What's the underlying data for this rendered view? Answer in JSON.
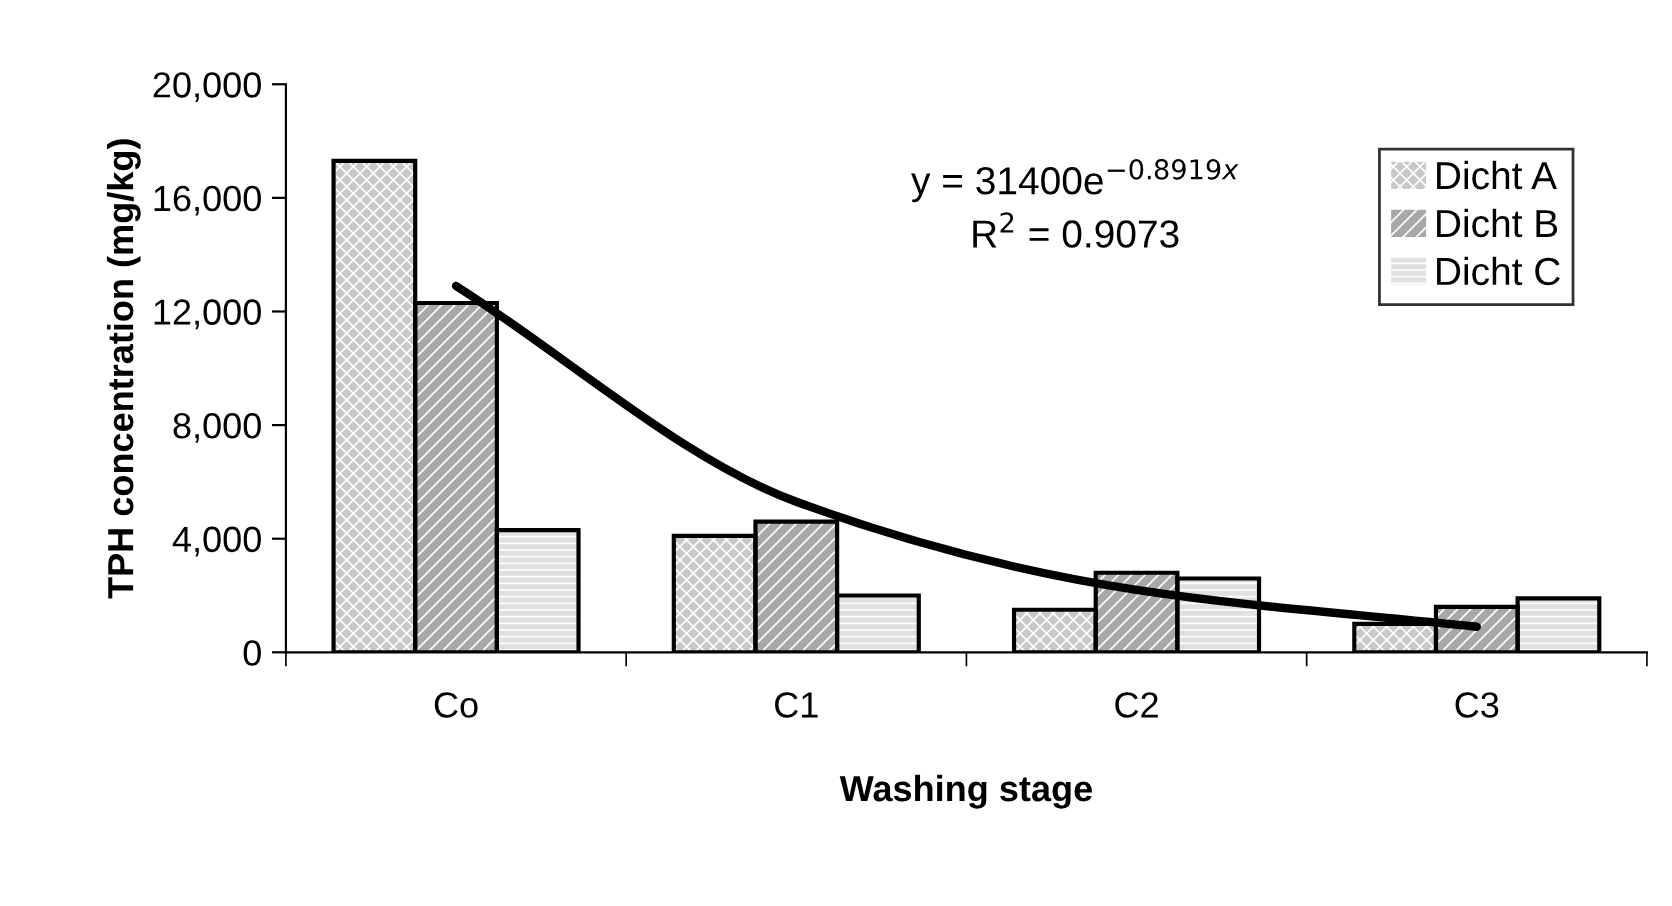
{
  "chart_data": {
    "type": "bar",
    "xlabel": "Washing stage",
    "ylabel": "TPH concentration (mg/kg)",
    "categories": [
      "Co",
      "C1",
      "C2",
      "C3"
    ],
    "series": [
      {
        "name": "Dicht A",
        "color": "#c8c8c8",
        "values": [
          17300,
          4100,
          1500,
          1000
        ]
      },
      {
        "name": "Dicht B",
        "color": "#a8a8a8",
        "values": [
          12300,
          4600,
          2800,
          1600
        ]
      },
      {
        "name": "Dicht C",
        "color": "#e0e0e0",
        "values": [
          4300,
          2000,
          2600,
          1900
        ]
      },
      {
        "type": "line",
        "color": "#000000",
        "values": [
          12900,
          5300,
          2200,
          900
        ]
      }
    ],
    "ylim": [
      0,
      20000
    ],
    "yticks": [
      0,
      {
        "value": 4000,
        "label": "4,000"
      },
      {
        "value": 8000,
        "label": "8,000"
      },
      {
        "value": 12000,
        "label": "12,000"
      },
      {
        "value": 16000,
        "label": "16,000"
      },
      {
        "value": 20000,
        "label": "20,000"
      }
    ],
    "annotations": [
      "y = 31400e$^{−0.8919x}$",
      "R$^{2}$ = 0.9073"
    ],
    "legend": "top right",
    "grid": false
  }
}
